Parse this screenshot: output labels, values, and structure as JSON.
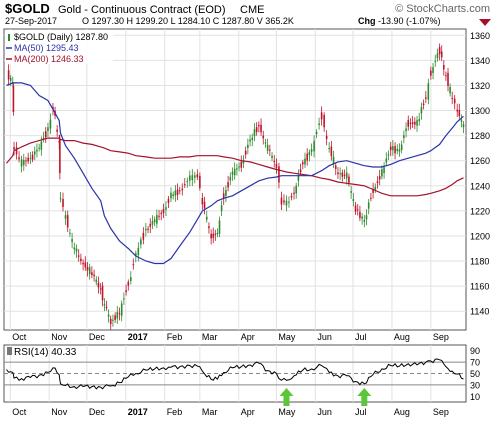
{
  "header": {
    "symbol": "$GOLD",
    "description": "Gold - Continuous Contract (EOD)",
    "exchange": "CME",
    "watermark": "© StockCharts.com",
    "date": "27-Sep-2017",
    "quote_line": "O 1297.30 H 1299.20 L 1284.10 C 1287.80 V 365.2K",
    "chg_label": "Chg",
    "chg_value": "-13.90 (-1.07%)"
  },
  "colors": {
    "up": "#2b8a2b",
    "down": "#c0122a",
    "ma50": "#2b33a8",
    "ma200": "#a3122b",
    "rsi_line": "#000000",
    "arrow": "#5cc63a"
  },
  "chart_data": [
    {
      "type": "candlestick",
      "title": "$GOLD Gold - Continuous Contract (EOD) CME",
      "legend": [
        {
          "label": "$GOLD (Daily) 1287.80",
          "color": "#000000"
        },
        {
          "label": "MA(50) 1295.43",
          "color": "#2b33a8"
        },
        {
          "label": "MA(200) 1246.33",
          "color": "#a3122b"
        }
      ],
      "legend_position": "top-left",
      "x_ticks": [
        "Oct",
        "Nov",
        "Dec",
        "2017",
        "Feb",
        "Mar",
        "Apr",
        "May",
        "Jun",
        "Jul",
        "Aug",
        "Sep"
      ],
      "y_ticks": [
        1140,
        1160,
        1180,
        1200,
        1220,
        1240,
        1260,
        1280,
        1300,
        1320,
        1340,
        1360
      ],
      "ylim": [
        1125,
        1365
      ],
      "grid": true,
      "x": [
        "2016-09-28",
        "2016-10-03",
        "2016-10-04",
        "2016-10-10",
        "2016-10-17",
        "2016-10-24",
        "2016-10-31",
        "2016-11-04",
        "2016-11-09",
        "2016-11-10",
        "2016-11-14",
        "2016-11-21",
        "2016-11-28",
        "2016-12-05",
        "2016-12-12",
        "2016-12-15",
        "2016-12-20",
        "2016-12-27",
        "2017-01-03",
        "2017-01-09",
        "2017-01-17",
        "2017-01-24",
        "2017-01-31",
        "2017-02-06",
        "2017-02-13",
        "2017-02-21",
        "2017-02-27",
        "2017-03-03",
        "2017-03-10",
        "2017-03-15",
        "2017-03-20",
        "2017-03-27",
        "2017-04-03",
        "2017-04-10",
        "2017-04-17",
        "2017-04-24",
        "2017-05-01",
        "2017-05-05",
        "2017-05-09",
        "2017-05-15",
        "2017-05-22",
        "2017-05-29",
        "2017-06-06",
        "2017-06-12",
        "2017-06-19",
        "2017-06-26",
        "2017-07-03",
        "2017-07-10",
        "2017-07-17",
        "2017-07-24",
        "2017-07-31",
        "2017-08-07",
        "2017-08-14",
        "2017-08-21",
        "2017-08-28",
        "2017-09-01",
        "2017-09-08",
        "2017-09-13",
        "2017-09-18",
        "2017-09-22",
        "2017-09-27"
      ],
      "close": [
        1330,
        1322,
        1270,
        1258,
        1262,
        1270,
        1285,
        1302,
        1275,
        1230,
        1215,
        1190,
        1178,
        1170,
        1158,
        1145,
        1132,
        1138,
        1162,
        1185,
        1205,
        1212,
        1220,
        1232,
        1236,
        1246,
        1248,
        1228,
        1200,
        1202,
        1232,
        1250,
        1257,
        1276,
        1288,
        1270,
        1256,
        1228,
        1226,
        1234,
        1258,
        1268,
        1296,
        1270,
        1250,
        1248,
        1222,
        1212,
        1236,
        1250,
        1270,
        1268,
        1290,
        1290,
        1310,
        1330,
        1348,
        1328,
        1310,
        1300,
        1287.8
      ],
      "ma50": [
        1320,
        1322,
        1322,
        1322,
        1320,
        1312,
        1308,
        1301,
        1292,
        1282,
        1272,
        1262,
        1250,
        1238,
        1228,
        1216,
        1206,
        1196,
        1190,
        1184,
        1180,
        1178,
        1178,
        1182,
        1192,
        1203,
        1213,
        1220,
        1224,
        1228,
        1230,
        1232,
        1236,
        1240,
        1244,
        1246,
        1247,
        1248,
        1248,
        1248,
        1248,
        1248,
        1252,
        1256,
        1259,
        1260,
        1258,
        1256,
        1255,
        1255,
        1257,
        1260,
        1262,
        1264,
        1266,
        1268,
        1273,
        1280,
        1286,
        1291,
        1295.43
      ],
      "ma200": [
        1258,
        1264,
        1268,
        1271,
        1274,
        1276,
        1278,
        1278,
        1278,
        1277,
        1276,
        1276,
        1274,
        1273,
        1271,
        1270,
        1268,
        1267,
        1266,
        1264,
        1263,
        1262,
        1262,
        1262,
        1263,
        1263,
        1264,
        1264,
        1264,
        1264,
        1263,
        1262,
        1260,
        1259,
        1257,
        1255,
        1253,
        1252,
        1251,
        1250,
        1249,
        1248,
        1246,
        1245,
        1243,
        1242,
        1241,
        1240,
        1237,
        1234,
        1232,
        1232,
        1232,
        1232,
        1233,
        1234,
        1236,
        1238,
        1241,
        1244,
        1246.33
      ]
    },
    {
      "type": "line",
      "title": "RSI(14) 40.33",
      "y_ticks": [
        10,
        30,
        50,
        70,
        90
      ],
      "reference_lines": [
        30,
        50,
        70
      ],
      "ylim": [
        0,
        100
      ],
      "x_ticks": [
        "Oct",
        "Nov",
        "Dec",
        "2017",
        "Feb",
        "Mar",
        "Apr",
        "May",
        "Jun",
        "Jul",
        "Aug",
        "Sep"
      ],
      "values": [
        57,
        52,
        42,
        41,
        43,
        47,
        52,
        60,
        48,
        32,
        29,
        27,
        27,
        27,
        26,
        27,
        28,
        34,
        44,
        50,
        56,
        58,
        60,
        61,
        62,
        64,
        63,
        54,
        40,
        40,
        52,
        60,
        62,
        65,
        68,
        55,
        50,
        38,
        38,
        46,
        56,
        58,
        64,
        52,
        46,
        46,
        36,
        32,
        48,
        58,
        64,
        63,
        67,
        65,
        70,
        72,
        74,
        62,
        54,
        49,
        40.33
      ],
      "annotations": [
        "up-arrow near May 2017",
        "up-arrow near Jul 2017"
      ]
    }
  ]
}
